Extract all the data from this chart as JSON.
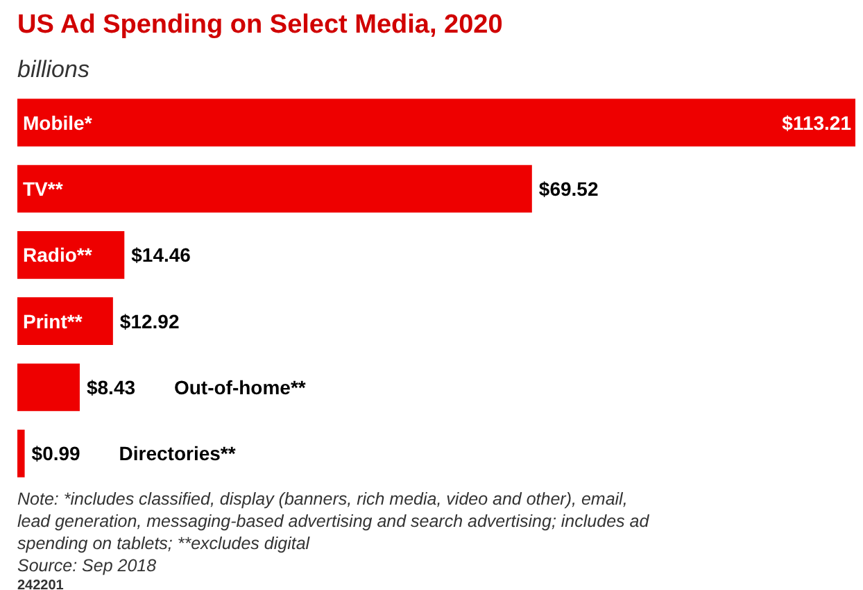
{
  "chart_data": {
    "type": "bar",
    "orientation": "horizontal",
    "title": "US Ad Spending on Select Media, 2020",
    "subtitle": "billions",
    "categories": [
      "Mobile*",
      "TV**",
      "Radio**",
      "Print**",
      "Out-of-home**",
      "Directories**"
    ],
    "values": [
      113.21,
      69.52,
      14.46,
      12.92,
      8.43,
      0.99
    ],
    "value_labels": [
      "$113.21",
      "$69.52",
      "$14.46",
      "$12.92",
      "$8.43",
      "$0.99"
    ],
    "color": "#ee0000",
    "grid": false,
    "annotations": [
      "Note: *includes classified, display (banners, rich media, video and other), email, lead generation, messaging-based advertising and search advertising; includes ad spending on tablets; **excludes digital",
      "Source: Sep 2018",
      "242201"
    ]
  }
}
